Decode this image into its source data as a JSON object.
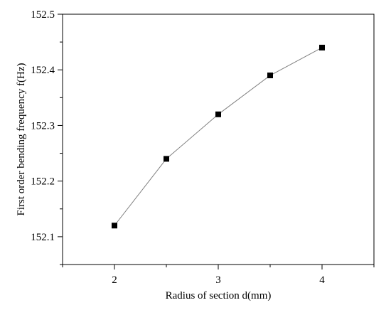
{
  "chart_data": {
    "type": "line",
    "title": "",
    "xlabel": "Radius of section d(mm)",
    "ylabel": "First order bending frequency f(Hz)",
    "xlim": [
      1.5,
      4.5
    ],
    "ylim": [
      152.05,
      152.5
    ],
    "x_ticks": [
      2,
      3,
      4
    ],
    "x_tick_labels": [
      "2",
      "3",
      "4"
    ],
    "y_ticks": [
      152.1,
      152.2,
      152.3,
      152.4,
      152.5
    ],
    "y_tick_labels": [
      "152.1",
      "152.2",
      "152.3",
      "152.4",
      "152.5"
    ],
    "grid": false,
    "legend": "none",
    "series": [
      {
        "x": [
          2,
          2.5,
          3,
          3.5,
          4
        ],
        "y": [
          152.12,
          152.24,
          152.32,
          152.39,
          152.44
        ],
        "marker": "square",
        "line_color": "#7f7f7f",
        "marker_color": "#000000"
      }
    ]
  }
}
